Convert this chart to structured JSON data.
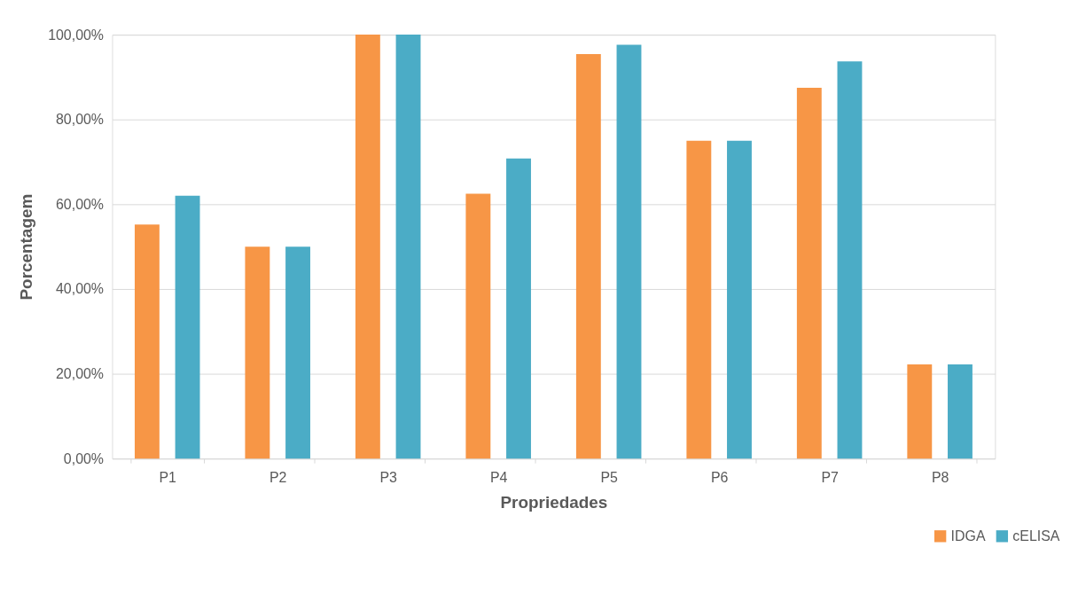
{
  "chart_data": {
    "type": "bar",
    "xlabel": "Propriedades",
    "ylabel": "Porcentagem",
    "categories": [
      "P1",
      "P2",
      "P3",
      "P4",
      "P5",
      "P6",
      "P7",
      "P8"
    ],
    "series": [
      {
        "name": "IDGA",
        "color": "#f79646",
        "values": [
          55.2,
          50,
          100,
          62.5,
          95.4,
          75,
          87.5,
          22.2
        ]
      },
      {
        "name": "cELISA",
        "color": "#4bacc6",
        "values": [
          62.0,
          50,
          100,
          70.8,
          97.6,
          75,
          93.7,
          22.2
        ]
      }
    ],
    "ylim": [
      0,
      100
    ],
    "yticks": [
      {
        "value": 0,
        "label": "0,00%"
      },
      {
        "value": 20,
        "label": "20,00%"
      },
      {
        "value": 40,
        "label": "40,00%"
      },
      {
        "value": 60,
        "label": "60,00%"
      },
      {
        "value": 80,
        "label": "80,00%"
      },
      {
        "value": 100,
        "label": "100,00%"
      }
    ],
    "grid": "y",
    "legend": "bottom right"
  }
}
